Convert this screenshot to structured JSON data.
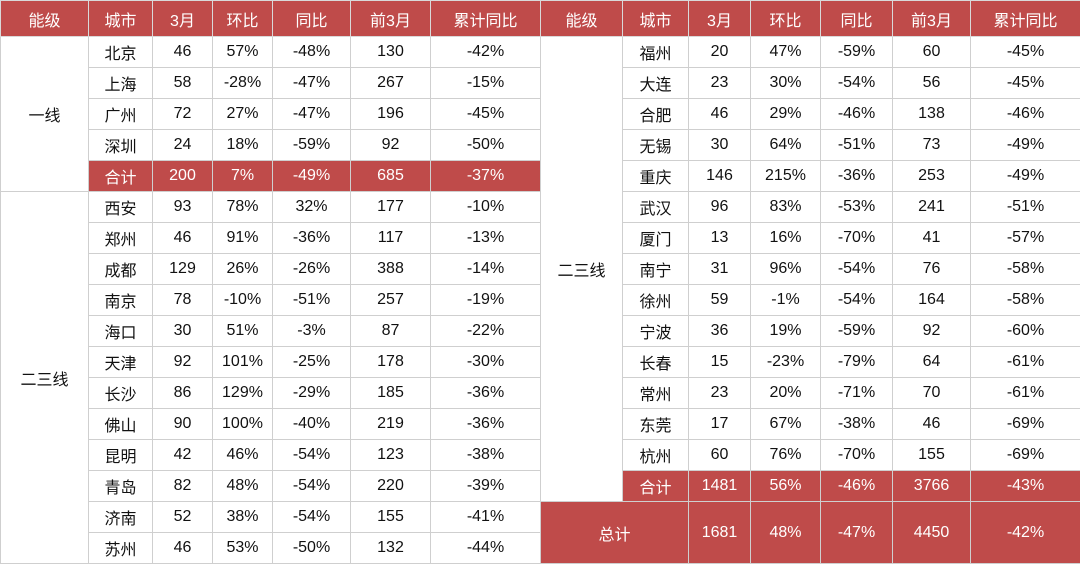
{
  "left": {
    "header": [
      "能级",
      "城市",
      "3月",
      "环比",
      "同比",
      "前3月",
      "累计同比"
    ],
    "groups": [
      {
        "tier": "一线",
        "rows": [
          [
            "北京",
            "46",
            "57%",
            "-48%",
            "130",
            "-42%"
          ],
          [
            "上海",
            "58",
            "-28%",
            "-47%",
            "267",
            "-15%"
          ],
          [
            "广州",
            "72",
            "27%",
            "-47%",
            "196",
            "-45%"
          ],
          [
            "深圳",
            "24",
            "18%",
            "-59%",
            "92",
            "-50%"
          ]
        ],
        "subtotal": [
          "合计",
          "200",
          "7%",
          "-49%",
          "685",
          "-37%"
        ]
      },
      {
        "tier": "二三线",
        "rows": [
          [
            "西安",
            "93",
            "78%",
            "32%",
            "177",
            "-10%"
          ],
          [
            "郑州",
            "46",
            "91%",
            "-36%",
            "117",
            "-13%"
          ],
          [
            "成都",
            "129",
            "26%",
            "-26%",
            "388",
            "-14%"
          ],
          [
            "南京",
            "78",
            "-10%",
            "-51%",
            "257",
            "-19%"
          ],
          [
            "海口",
            "30",
            "51%",
            "-3%",
            "87",
            "-22%"
          ],
          [
            "天津",
            "92",
            "101%",
            "-25%",
            "178",
            "-30%"
          ],
          [
            "长沙",
            "86",
            "129%",
            "-29%",
            "185",
            "-36%"
          ],
          [
            "佛山",
            "90",
            "100%",
            "-40%",
            "219",
            "-36%"
          ],
          [
            "昆明",
            "42",
            "46%",
            "-54%",
            "123",
            "-38%"
          ],
          [
            "青岛",
            "82",
            "48%",
            "-54%",
            "220",
            "-39%"
          ],
          [
            "济南",
            "52",
            "38%",
            "-54%",
            "155",
            "-41%"
          ],
          [
            "苏州",
            "46",
            "53%",
            "-50%",
            "132",
            "-44%"
          ]
        ]
      }
    ]
  },
  "right": {
    "header": [
      "能级",
      "城市",
      "3月",
      "环比",
      "同比",
      "前3月",
      "累计同比"
    ],
    "groups": [
      {
        "tier": "二三线",
        "rows": [
          [
            "福州",
            "20",
            "47%",
            "-59%",
            "60",
            "-45%"
          ],
          [
            "大连",
            "23",
            "30%",
            "-54%",
            "56",
            "-45%"
          ],
          [
            "合肥",
            "46",
            "29%",
            "-46%",
            "138",
            "-46%"
          ],
          [
            "无锡",
            "30",
            "64%",
            "-51%",
            "73",
            "-49%"
          ],
          [
            "重庆",
            "146",
            "215%",
            "-36%",
            "253",
            "-49%"
          ],
          [
            "武汉",
            "96",
            "83%",
            "-53%",
            "241",
            "-51%"
          ],
          [
            "厦门",
            "13",
            "16%",
            "-70%",
            "41",
            "-57%"
          ],
          [
            "南宁",
            "31",
            "96%",
            "-54%",
            "76",
            "-58%"
          ],
          [
            "徐州",
            "59",
            "-1%",
            "-54%",
            "164",
            "-58%"
          ],
          [
            "宁波",
            "36",
            "19%",
            "-59%",
            "92",
            "-60%"
          ],
          [
            "长春",
            "15",
            "-23%",
            "-79%",
            "64",
            "-61%"
          ],
          [
            "常州",
            "23",
            "20%",
            "-71%",
            "70",
            "-61%"
          ],
          [
            "东莞",
            "17",
            "67%",
            "-38%",
            "46",
            "-69%"
          ],
          [
            "杭州",
            "60",
            "76%",
            "-70%",
            "155",
            "-69%"
          ]
        ],
        "subtotal": [
          "合计",
          "1481",
          "56%",
          "-46%",
          "3766",
          "-43%"
        ]
      }
    ],
    "total": [
      "总计",
      "1681",
      "48%",
      "-47%",
      "4450",
      "-42%"
    ]
  }
}
